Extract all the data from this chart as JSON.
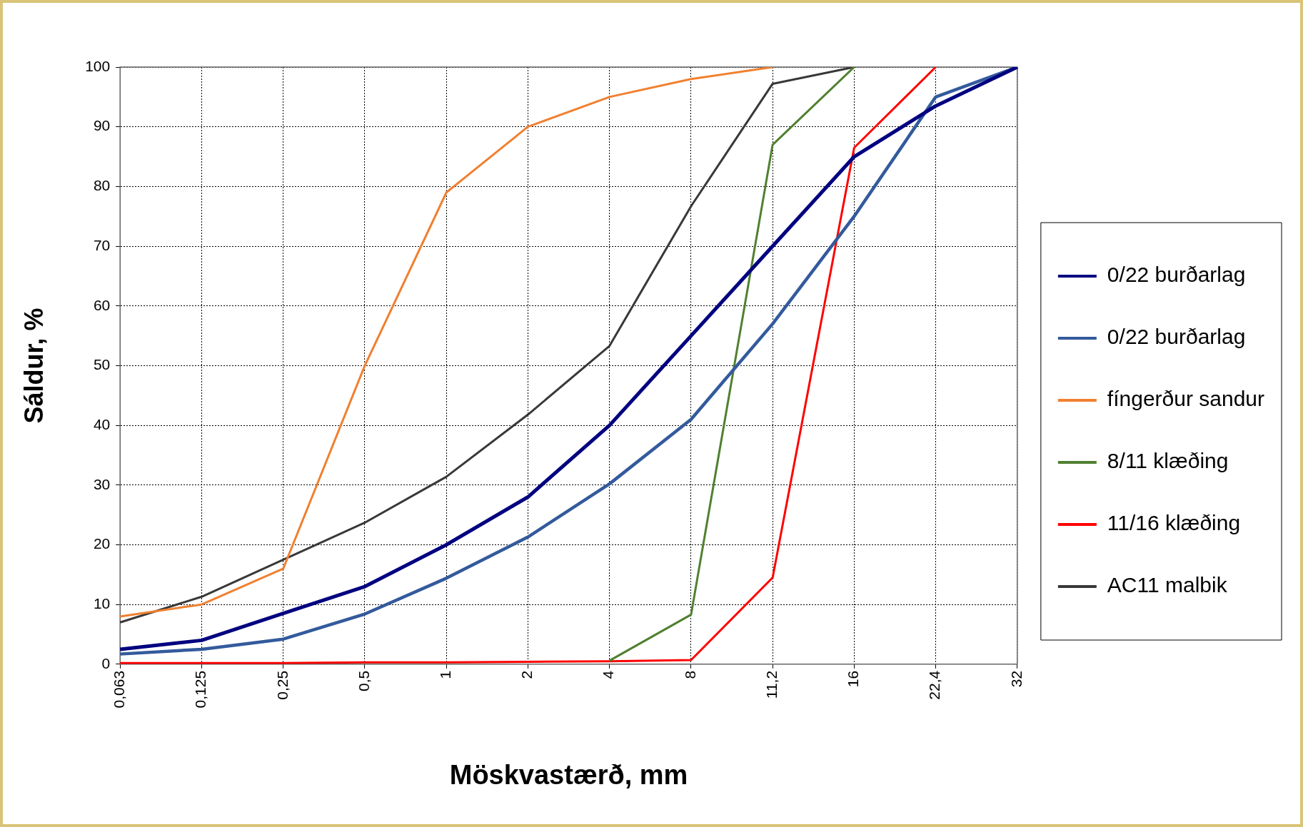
{
  "chart_data": {
    "type": "line",
    "xlabel": "Möskvastærð, mm",
    "ylabel": "Sáldur, %",
    "categories": [
      "0,063",
      "0,125",
      "0,25",
      "0,5",
      "1",
      "2",
      "4",
      "8",
      "11,2",
      "16",
      "22,4",
      "32"
    ],
    "series": [
      {
        "name": "0/22 burðarlag",
        "color": "#000080",
        "values": [
          2.5,
          4,
          8.5,
          13,
          20,
          28,
          40,
          55,
          70,
          85,
          93.5,
          100
        ]
      },
      {
        "name": "0/22 burðarlag",
        "color": "#335a9c",
        "values": [
          1.7,
          2.5,
          4.2,
          8.4,
          14.4,
          21.3,
          30.2,
          41,
          57,
          75,
          95,
          100
        ]
      },
      {
        "name": "fíngerður sandur",
        "color": "#f08030",
        "values": [
          8,
          10,
          16,
          50,
          79,
          90,
          95,
          98,
          100,
          null,
          null,
          null
        ]
      },
      {
        "name": "8/11 klæðing",
        "color": "#508030",
        "values": [
          null,
          null,
          null,
          null,
          null,
          null,
          0.6,
          8.3,
          87,
          100,
          null,
          null
        ]
      },
      {
        "name": "11/16 klæðing",
        "color": "#ff0000",
        "values": [
          0.2,
          0.2,
          0.2,
          0.3,
          0.3,
          0.4,
          0.5,
          0.7,
          14.5,
          86.5,
          100,
          null
        ]
      },
      {
        "name": "AC11 malbik",
        "color": "#383838",
        "values": [
          7,
          11.3,
          17.5,
          23.7,
          31.4,
          41.8,
          53.3,
          76.7,
          97.2,
          100,
          null,
          null
        ]
      }
    ],
    "ylim": [
      0,
      100
    ],
    "yticks": [
      0,
      10,
      20,
      30,
      40,
      50,
      60,
      70,
      80,
      90,
      100
    ],
    "grid": true,
    "legend": "right",
    "marker": "none",
    "line_style": "solid"
  }
}
